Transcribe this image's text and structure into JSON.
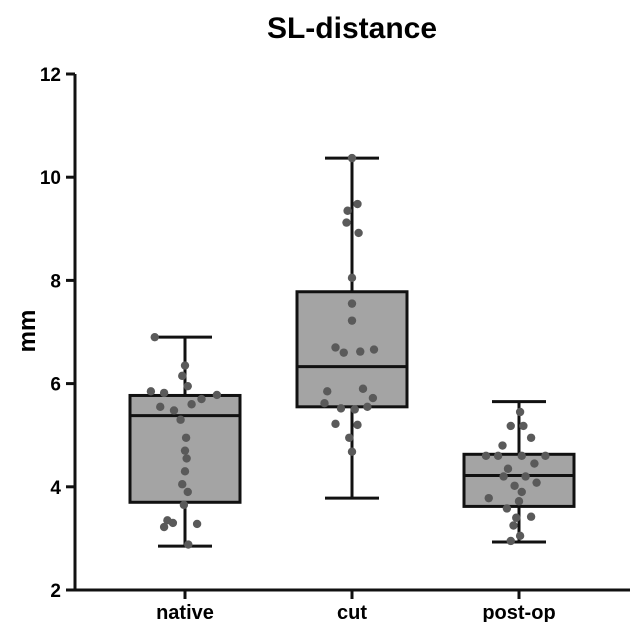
{
  "chart_data": {
    "type": "box",
    "title": "SL-distance",
    "xlabel": "",
    "ylabel": "mm",
    "ylim": [
      2,
      12
    ],
    "yticks": [
      2,
      4,
      6,
      8,
      10,
      12
    ],
    "grid": false,
    "categories": [
      "native",
      "cut",
      "post-op"
    ],
    "colors": {
      "box_fill": "#a4a4a4",
      "stroke": "#111111",
      "point": "#5a5a5a"
    },
    "boxes": [
      {
        "category": "native",
        "min": 2.85,
        "q1": 3.7,
        "median": 5.38,
        "q3": 5.77,
        "max": 6.9,
        "points": [
          {
            "x": -0.55,
            "y": 6.9
          },
          {
            "x": 0.0,
            "y": 6.35
          },
          {
            "x": -0.05,
            "y": 6.15
          },
          {
            "x": 0.05,
            "y": 5.95
          },
          {
            "x": -0.62,
            "y": 5.85
          },
          {
            "x": -0.38,
            "y": 5.82
          },
          {
            "x": 0.58,
            "y": 5.78
          },
          {
            "x": 0.3,
            "y": 5.7
          },
          {
            "x": 0.12,
            "y": 5.6
          },
          {
            "x": -0.45,
            "y": 5.55
          },
          {
            "x": -0.2,
            "y": 5.48
          },
          {
            "x": -0.08,
            "y": 5.3
          },
          {
            "x": 0.02,
            "y": 4.95
          },
          {
            "x": 0.0,
            "y": 4.7
          },
          {
            "x": 0.03,
            "y": 4.55
          },
          {
            "x": 0.0,
            "y": 4.3
          },
          {
            "x": -0.05,
            "y": 4.05
          },
          {
            "x": 0.05,
            "y": 3.9
          },
          {
            "x": -0.02,
            "y": 3.65
          },
          {
            "x": -0.32,
            "y": 3.35
          },
          {
            "x": -0.22,
            "y": 3.3
          },
          {
            "x": 0.22,
            "y": 3.28
          },
          {
            "x": -0.38,
            "y": 3.22
          },
          {
            "x": 0.06,
            "y": 2.88
          }
        ]
      },
      {
        "category": "cut",
        "min": 3.78,
        "q1": 5.55,
        "median": 6.33,
        "q3": 7.78,
        "max": 10.37,
        "points": [
          {
            "x": 0.0,
            "y": 10.37
          },
          {
            "x": 0.1,
            "y": 9.48
          },
          {
            "x": -0.08,
            "y": 9.35
          },
          {
            "x": -0.1,
            "y": 9.12
          },
          {
            "x": 0.12,
            "y": 8.92
          },
          {
            "x": 0.0,
            "y": 8.05
          },
          {
            "x": 0.0,
            "y": 7.55
          },
          {
            "x": 0.0,
            "y": 7.22
          },
          {
            "x": -0.3,
            "y": 6.7
          },
          {
            "x": 0.15,
            "y": 6.62
          },
          {
            "x": 0.4,
            "y": 6.66
          },
          {
            "x": -0.15,
            "y": 6.6
          },
          {
            "x": 0.2,
            "y": 5.9
          },
          {
            "x": -0.45,
            "y": 5.85
          },
          {
            "x": 0.38,
            "y": 5.72
          },
          {
            "x": -0.5,
            "y": 5.62
          },
          {
            "x": 0.28,
            "y": 5.55
          },
          {
            "x": -0.2,
            "y": 5.52
          },
          {
            "x": 0.05,
            "y": 5.5
          },
          {
            "x": -0.3,
            "y": 5.22
          },
          {
            "x": 0.1,
            "y": 5.2
          },
          {
            "x": -0.05,
            "y": 4.95
          },
          {
            "x": 0.0,
            "y": 4.68
          }
        ]
      },
      {
        "category": "post-op",
        "min": 2.93,
        "q1": 3.62,
        "median": 4.22,
        "q3": 4.63,
        "max": 5.65,
        "points": [
          {
            "x": 0.02,
            "y": 5.45
          },
          {
            "x": -0.15,
            "y": 5.18
          },
          {
            "x": 0.08,
            "y": 5.18
          },
          {
            "x": 0.22,
            "y": 4.95
          },
          {
            "x": -0.3,
            "y": 4.8
          },
          {
            "x": -0.6,
            "y": 4.6
          },
          {
            "x": -0.38,
            "y": 4.6
          },
          {
            "x": 0.05,
            "y": 4.6
          },
          {
            "x": 0.48,
            "y": 4.6
          },
          {
            "x": 0.28,
            "y": 4.45
          },
          {
            "x": -0.2,
            "y": 4.35
          },
          {
            "x": -0.28,
            "y": 4.2
          },
          {
            "x": 0.12,
            "y": 4.2
          },
          {
            "x": 0.32,
            "y": 4.08
          },
          {
            "x": -0.08,
            "y": 4.02
          },
          {
            "x": 0.05,
            "y": 3.9
          },
          {
            "x": -0.55,
            "y": 3.78
          },
          {
            "x": 0.0,
            "y": 3.72
          },
          {
            "x": -0.22,
            "y": 3.58
          },
          {
            "x": 0.22,
            "y": 3.42
          },
          {
            "x": -0.05,
            "y": 3.4
          },
          {
            "x": -0.1,
            "y": 3.25
          },
          {
            "x": 0.02,
            "y": 3.05
          },
          {
            "x": -0.15,
            "y": 2.95
          }
        ]
      }
    ]
  }
}
